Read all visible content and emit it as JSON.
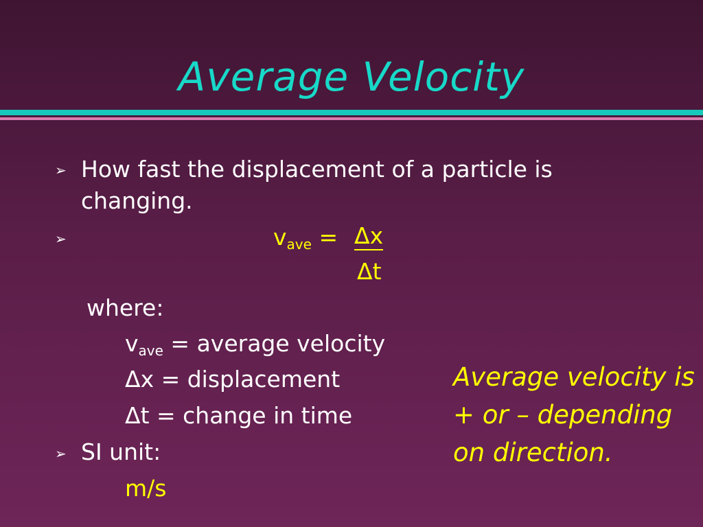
{
  "slide": {
    "title": "Average Velocity",
    "bullet_glyph": "➢",
    "bullets": {
      "b1_line1": "How fast the displacement of a particle is",
      "b1_line2": "changing.",
      "formula_lhs": "v",
      "formula_lhs_sub": "ave",
      "formula_equals": "=",
      "formula_numerator": "Δx",
      "formula_denominator": "Δt",
      "where_label": "where:",
      "def1_var": "v",
      "def1_sub": "ave",
      "def1_text": " = average velocity",
      "def2": "Δx = displacement",
      "def3": "Δt = change in time",
      "si_label": "SI unit:",
      "si_value": "m/s"
    },
    "side_note": "Average velocity is + or – depending on direction."
  },
  "colors": {
    "background_top": "#3f1432",
    "background_bottom": "#6e2558",
    "title": "#18d9c8",
    "rule_teal": "#17c9bb",
    "rule_pink": "#d97fb0",
    "highlight": "#ffff00",
    "body_text": "#ffffff"
  }
}
